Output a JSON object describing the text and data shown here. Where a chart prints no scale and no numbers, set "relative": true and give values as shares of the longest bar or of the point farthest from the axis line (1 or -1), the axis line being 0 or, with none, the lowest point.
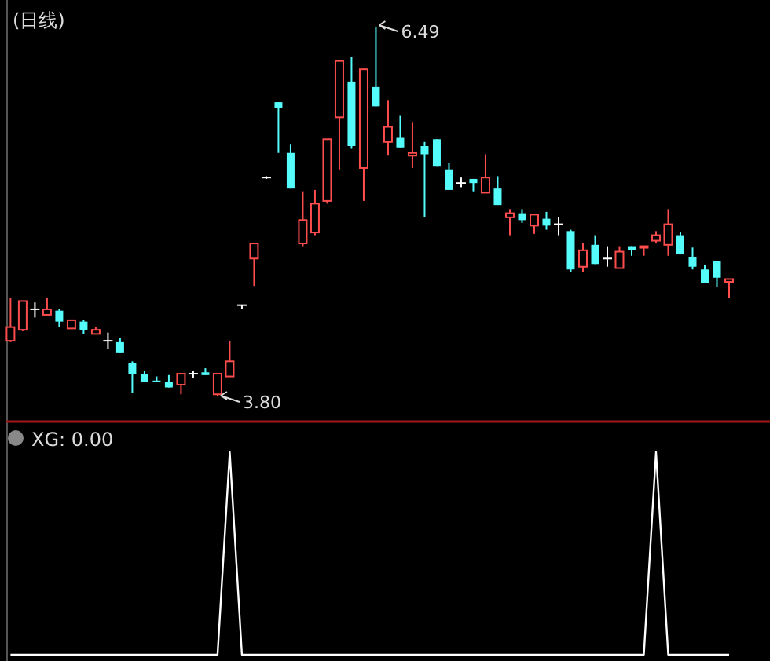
{
  "chart_data": [
    {
      "type": "candlestick",
      "title": "(日线)",
      "categories": [
        null,
        null,
        null,
        null,
        null,
        null,
        null,
        null,
        null,
        null,
        null,
        null,
        null,
        null,
        null,
        null,
        null,
        null,
        null,
        null,
        null,
        null,
        null,
        null,
        null,
        null,
        null,
        null,
        null,
        null,
        null,
        null,
        null,
        null,
        null,
        null,
        null,
        null,
        null,
        null,
        null,
        null,
        null,
        null,
        null,
        null,
        null,
        null,
        null,
        null,
        null,
        null,
        null,
        null,
        null,
        null,
        null,
        null,
        null,
        null
      ],
      "ohlc": [
        [
          4.2,
          4.51,
          4.19,
          4.3
        ],
        [
          4.28,
          4.49,
          4.27,
          4.49
        ],
        [
          4.43,
          4.48,
          4.37,
          4.43
        ],
        [
          4.39,
          4.51,
          4.39,
          4.43
        ],
        [
          4.42,
          4.43,
          4.3,
          4.34
        ],
        [
          4.29,
          4.35,
          4.29,
          4.35
        ],
        [
          4.34,
          4.35,
          4.25,
          4.28
        ],
        [
          4.25,
          4.3,
          4.25,
          4.28
        ],
        [
          4.2,
          4.26,
          4.14,
          4.2
        ],
        [
          4.19,
          4.22,
          4.11,
          4.11
        ],
        [
          4.04,
          4.05,
          3.82,
          3.96
        ],
        [
          3.96,
          3.98,
          3.9,
          3.9
        ],
        [
          3.91,
          3.94,
          3.9,
          3.9
        ],
        [
          3.9,
          3.95,
          3.86,
          3.86
        ],
        [
          3.88,
          3.96,
          3.81,
          3.96
        ],
        [
          3.96,
          3.98,
          3.93,
          3.96
        ],
        [
          3.97,
          4.0,
          3.95,
          3.95
        ],
        [
          3.81,
          3.96,
          3.8,
          3.96
        ],
        [
          3.94,
          4.2,
          3.94,
          4.05
        ],
        [
          4.46,
          4.46,
          4.43,
          4.46
        ],
        [
          4.8,
          4.91,
          4.6,
          4.91
        ],
        [
          5.39,
          5.4,
          5.38,
          5.39
        ],
        [
          5.94,
          5.94,
          5.57,
          5.9
        ],
        [
          5.57,
          5.63,
          5.31,
          5.31
        ],
        [
          4.91,
          5.29,
          4.89,
          5.08
        ],
        [
          4.99,
          5.3,
          4.97,
          5.2
        ],
        [
          5.22,
          5.67,
          5.2,
          5.67
        ],
        [
          5.83,
          6.24,
          5.45,
          6.24
        ],
        [
          6.09,
          6.27,
          5.6,
          5.62
        ],
        [
          5.46,
          6.18,
          5.22,
          6.18
        ],
        [
          6.05,
          6.49,
          5.91,
          5.91
        ],
        [
          5.65,
          5.95,
          5.55,
          5.76
        ],
        [
          5.68,
          5.84,
          5.61,
          5.61
        ],
        [
          5.55,
          5.79,
          5.46,
          5.57
        ],
        [
          5.62,
          5.65,
          5.1,
          5.56
        ],
        [
          5.67,
          5.67,
          5.47,
          5.47
        ],
        [
          5.45,
          5.5,
          5.3,
          5.3
        ],
        [
          5.35,
          5.39,
          5.32,
          5.35
        ],
        [
          5.38,
          5.38,
          5.29,
          5.35
        ],
        [
          5.28,
          5.56,
          5.28,
          5.39
        ],
        [
          5.31,
          5.4,
          5.19,
          5.19
        ],
        [
          5.1,
          5.16,
          4.97,
          5.13
        ],
        [
          5.13,
          5.16,
          5.06,
          5.08
        ],
        [
          5.04,
          5.12,
          4.98,
          5.12
        ],
        [
          5.09,
          5.14,
          5.01,
          5.04
        ],
        [
          5.05,
          5.1,
          4.97,
          5.05
        ],
        [
          5.0,
          5.01,
          4.7,
          4.72
        ],
        [
          4.74,
          4.91,
          4.7,
          4.86
        ],
        [
          4.9,
          4.97,
          4.76,
          4.76
        ],
        [
          4.8,
          4.89,
          4.74,
          4.8
        ],
        [
          4.73,
          4.89,
          4.73,
          4.85
        ],
        [
          4.89,
          4.89,
          4.82,
          4.86
        ],
        [
          4.88,
          4.89,
          4.82,
          4.89
        ],
        [
          4.93,
          5.0,
          4.91,
          4.97
        ],
        [
          4.9,
          5.16,
          4.82,
          5.05
        ],
        [
          4.97,
          4.99,
          4.83,
          4.83
        ],
        [
          4.81,
          4.88,
          4.72,
          4.74
        ],
        [
          4.72,
          4.75,
          4.62,
          4.62
        ],
        [
          4.78,
          4.78,
          4.59,
          4.66
        ],
        [
          4.63,
          4.65,
          4.51,
          4.65
        ]
      ],
      "annotations": [
        "6.49",
        "3.80"
      ]
    },
    {
      "type": "line",
      "title": "XG: 0.00",
      "relative": true,
      "color": "#ffffff",
      "categories": [
        null,
        null,
        null,
        null,
        null,
        null,
        null,
        null,
        null,
        null,
        null,
        null,
        null,
        null,
        null,
        null,
        null,
        null,
        null,
        null,
        null,
        null,
        null,
        null,
        null,
        null,
        null,
        null,
        null,
        null,
        null,
        null,
        null,
        null,
        null,
        null,
        null,
        null,
        null,
        null,
        null,
        null,
        null,
        null,
        null,
        null,
        null,
        null,
        null,
        null,
        null,
        null,
        null,
        null,
        null,
        null,
        null,
        null,
        null,
        null
      ],
      "values": [
        0,
        0,
        0,
        0,
        0,
        0,
        0,
        0,
        0,
        0,
        0,
        0,
        0,
        0,
        0,
        0,
        0,
        0,
        1,
        0,
        0,
        0,
        0,
        0,
        0,
        0,
        0,
        0,
        0,
        0,
        0,
        0,
        0,
        0,
        0,
        0,
        0,
        0,
        0,
        0,
        0,
        0,
        0,
        0,
        0,
        0,
        0,
        0,
        0,
        0,
        0,
        0,
        0,
        1,
        0,
        0,
        0,
        0,
        0,
        0
      ]
    }
  ]
}
